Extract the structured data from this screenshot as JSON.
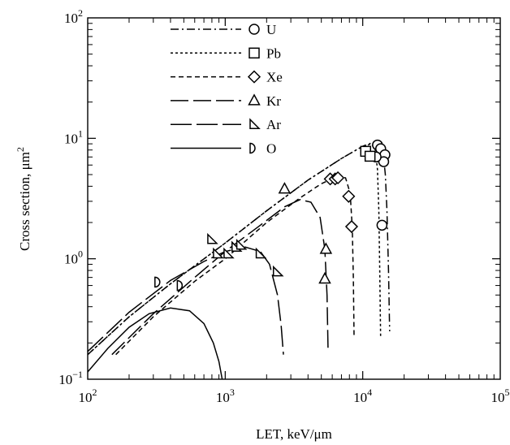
{
  "chart_data": {
    "type": "scatter",
    "title": "",
    "xlabel": "LET, keV/μm",
    "ylabel_main": "Cross section, μm",
    "ylabel_sup": "2",
    "x_scale": "log",
    "y_scale": "log",
    "xlim": [
      100,
      100000
    ],
    "ylim": [
      0.1,
      100
    ],
    "grid": false,
    "legend_position": "top-left",
    "x_ticks": [
      {
        "base": "10",
        "exp": "2",
        "value": 100
      },
      {
        "base": "10",
        "exp": "3",
        "value": 1000
      },
      {
        "base": "10",
        "exp": "4",
        "value": 10000
      },
      {
        "base": "10",
        "exp": "5",
        "value": 100000
      }
    ],
    "y_ticks": [
      {
        "base": "10",
        "exp": "−1",
        "value": 0.1
      },
      {
        "base": "10",
        "exp": "0",
        "value": 1
      },
      {
        "base": "10",
        "exp": "1",
        "value": 10
      },
      {
        "base": "10",
        "exp": "2",
        "value": 100
      }
    ],
    "series": [
      {
        "name": "U",
        "marker": "circle",
        "dash": "10 4 2 4",
        "points": [
          [
            12800,
            8.8
          ],
          [
            13500,
            8.2
          ],
          [
            14500,
            7.3
          ],
          [
            14200,
            6.4
          ],
          [
            12500,
            7.0
          ],
          [
            13800,
            1.9
          ]
        ],
        "curve": [
          [
            100,
            0.16
          ],
          [
            200,
            0.33
          ],
          [
            400,
            0.62
          ],
          [
            1000,
            1.35
          ],
          [
            2000,
            2.5
          ],
          [
            4000,
            4.5
          ],
          [
            7000,
            6.8
          ],
          [
            10000,
            8.6
          ],
          [
            12000,
            9.3
          ],
          [
            13200,
            9.4
          ],
          [
            14000,
            8.0
          ],
          [
            14600,
            5.0
          ],
          [
            15000,
            2.5
          ],
          [
            15400,
            0.8
          ],
          [
            15700,
            0.25
          ]
        ]
      },
      {
        "name": "Pb",
        "marker": "square",
        "dash": "3 3",
        "points": [
          [
            10500,
            7.8
          ],
          [
            11300,
            7.1
          ]
        ],
        "curve": [
          [
            100,
            0.16
          ],
          [
            200,
            0.33
          ],
          [
            400,
            0.62
          ],
          [
            1000,
            1.35
          ],
          [
            2000,
            2.5
          ],
          [
            4000,
            4.5
          ],
          [
            7000,
            6.8
          ],
          [
            9500,
            8.3
          ],
          [
            11500,
            9.0
          ],
          [
            12300,
            8.3
          ],
          [
            12800,
            5.5
          ],
          [
            13100,
            2.5
          ],
          [
            13300,
            0.8
          ],
          [
            13500,
            0.22
          ]
        ]
      },
      {
        "name": "Xe",
        "marker": "diamond",
        "dash": "6 4",
        "points": [
          [
            5800,
            4.6
          ],
          [
            6300,
            4.6
          ],
          [
            6600,
            4.7
          ],
          [
            7900,
            3.3
          ],
          [
            8300,
            1.85
          ]
        ],
        "curve": [
          [
            160,
            0.16
          ],
          [
            300,
            0.33
          ],
          [
            600,
            0.65
          ],
          [
            1000,
            1.0
          ],
          [
            2000,
            2.0
          ],
          [
            3500,
            3.2
          ],
          [
            5000,
            4.2
          ],
          [
            6500,
            4.8
          ],
          [
            7500,
            4.7
          ],
          [
            8100,
            3.5
          ],
          [
            8400,
            1.8
          ],
          [
            8550,
            0.7
          ],
          [
            8650,
            0.22
          ]
        ]
      },
      {
        "name": "Kr",
        "marker": "triangle",
        "dash": "22 6",
        "points": [
          [
            2700,
            3.8
          ],
          [
            5400,
            1.2
          ],
          [
            5300,
            0.68
          ]
        ],
        "curve": [
          [
            150,
            0.16
          ],
          [
            300,
            0.35
          ],
          [
            600,
            0.7
          ],
          [
            1000,
            1.15
          ],
          [
            1800,
            1.9
          ],
          [
            2700,
            2.7
          ],
          [
            3500,
            3.1
          ],
          [
            4200,
            2.95
          ],
          [
            4900,
            2.2
          ],
          [
            5300,
            1.2
          ],
          [
            5500,
            0.5
          ],
          [
            5600,
            0.17
          ]
        ]
      },
      {
        "name": "Ar",
        "marker": "halftriangle",
        "dash": "26 6",
        "points": [
          [
            800,
            1.45
          ],
          [
            880,
            1.1
          ],
          [
            1050,
            1.1
          ],
          [
            1200,
            1.25
          ],
          [
            1300,
            1.3
          ],
          [
            1800,
            1.1
          ],
          [
            2400,
            0.78
          ]
        ],
        "curve": [
          [
            100,
            0.17
          ],
          [
            200,
            0.36
          ],
          [
            400,
            0.66
          ],
          [
            700,
            0.95
          ],
          [
            1000,
            1.15
          ],
          [
            1400,
            1.25
          ],
          [
            1800,
            1.15
          ],
          [
            2100,
            0.9
          ],
          [
            2400,
            0.5
          ],
          [
            2550,
            0.28
          ],
          [
            2650,
            0.16
          ]
        ]
      },
      {
        "name": "O",
        "marker": "halfcircle",
        "dash": "",
        "points": [
          [
            330,
            0.64
          ],
          [
            480,
            0.6
          ]
        ],
        "curve": [
          [
            100,
            0.115
          ],
          [
            140,
            0.18
          ],
          [
            200,
            0.27
          ],
          [
            280,
            0.35
          ],
          [
            400,
            0.39
          ],
          [
            550,
            0.37
          ],
          [
            700,
            0.29
          ],
          [
            820,
            0.2
          ],
          [
            900,
            0.14
          ],
          [
            950,
            0.1
          ]
        ]
      }
    ]
  }
}
